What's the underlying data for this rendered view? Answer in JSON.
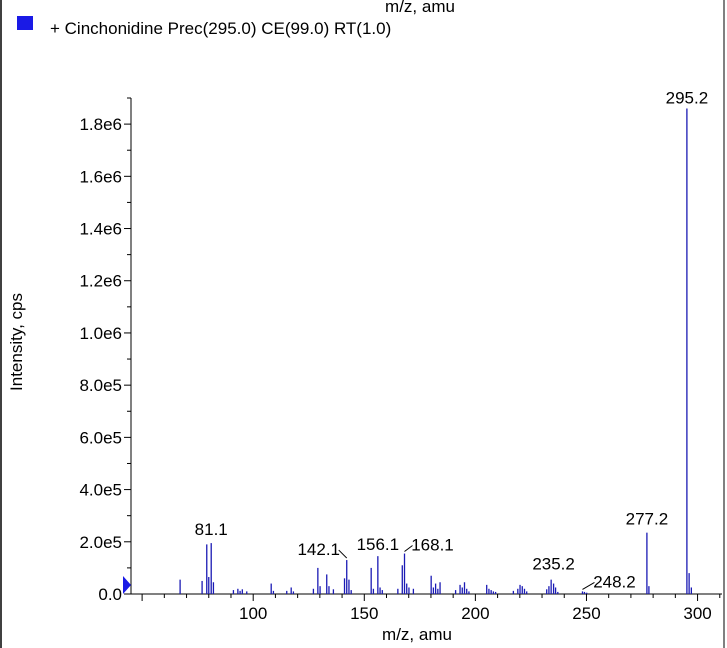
{
  "header": {
    "cut_title": "m/z, amu",
    "legend_label": "+ Cinchonidine Prec(295.0) CE(99.0) RT(1.0)",
    "legend_color": "#1a1ae6"
  },
  "chart_data": {
    "type": "bar",
    "title": "",
    "xlabel": "m/z, amu",
    "ylabel": "Intensity, cps",
    "xlim": [
      45,
      311
    ],
    "ylim": [
      0,
      1900000
    ],
    "x_ticks": [
      100,
      150,
      200,
      250,
      300
    ],
    "y_ticks": [
      0,
      200000,
      400000,
      600000,
      800000,
      1000000,
      1200000,
      1400000,
      1600000,
      1800000
    ],
    "y_tick_labels": [
      "0.0",
      "2.0e5",
      "4.0e5",
      "6.0e5",
      "8.0e5",
      "1.0e6",
      "1.2e6",
      "1.4e6",
      "1.6e6",
      "1.8e6"
    ],
    "grid": false,
    "series": [
      {
        "name": "+ Cinchonidine Prec(295.0) CE(99.0) RT(1.0)",
        "color": "#1a1ab4",
        "x": [
          67.1,
          77.0,
          79.1,
          80.0,
          81.1,
          82.1,
          91.1,
          93.1,
          94.1,
          95.1,
          97.1,
          108.1,
          109.1,
          115.1,
          117.1,
          118.1,
          127.1,
          129.1,
          130.1,
          133.1,
          134.1,
          136.1,
          141.1,
          142.1,
          143.1,
          144.1,
          153.1,
          154.1,
          156.1,
          157.1,
          158.1,
          165.1,
          167.1,
          168.1,
          169.1,
          170.1,
          172.1,
          180.1,
          181.1,
          182.1,
          183.1,
          184.1,
          191.1,
          193.1,
          194.1,
          195.1,
          196.1,
          197.1,
          205.1,
          206.1,
          207.1,
          208.1,
          209.1,
          217.1,
          219.1,
          220.1,
          221.1,
          222.1,
          223.1,
          232.1,
          233.1,
          234.1,
          235.2,
          236.1,
          237.1,
          248.2,
          249.1,
          250.1,
          277.2,
          278.1,
          295.2,
          296.2,
          297.2
        ],
        "y": [
          55000,
          50000,
          190000,
          65000,
          195000,
          45000,
          15000,
          20000,
          12000,
          18000,
          10000,
          40000,
          12000,
          12000,
          25000,
          10000,
          20000,
          100000,
          30000,
          75000,
          30000,
          18000,
          60000,
          130000,
          55000,
          15000,
          100000,
          20000,
          145000,
          25000,
          15000,
          20000,
          110000,
          155000,
          40000,
          25000,
          20000,
          70000,
          25000,
          40000,
          20000,
          45000,
          15000,
          35000,
          25000,
          45000,
          20000,
          10000,
          35000,
          20000,
          15000,
          10000,
          8000,
          12000,
          20000,
          35000,
          30000,
          20000,
          10000,
          18000,
          30000,
          55000,
          40000,
          25000,
          8000,
          10000,
          8000,
          5000,
          235000,
          30000,
          1860000,
          80000,
          25000
        ]
      }
    ],
    "annotations": [
      {
        "x": 81.1,
        "y": 195000,
        "text": "81.1"
      },
      {
        "x": 142.1,
        "y": 130000,
        "text": "142.1"
      },
      {
        "x": 156.1,
        "y": 145000,
        "text": "156.1"
      },
      {
        "x": 168.1,
        "y": 155000,
        "text": "168.1"
      },
      {
        "x": 235.2,
        "y": 55000,
        "text": "235.2"
      },
      {
        "x": 248.2,
        "y": 10000,
        "text": "248.2"
      },
      {
        "x": 277.2,
        "y": 235000,
        "text": "277.2"
      },
      {
        "x": 295.2,
        "y": 1860000,
        "text": "295.2"
      }
    ]
  }
}
